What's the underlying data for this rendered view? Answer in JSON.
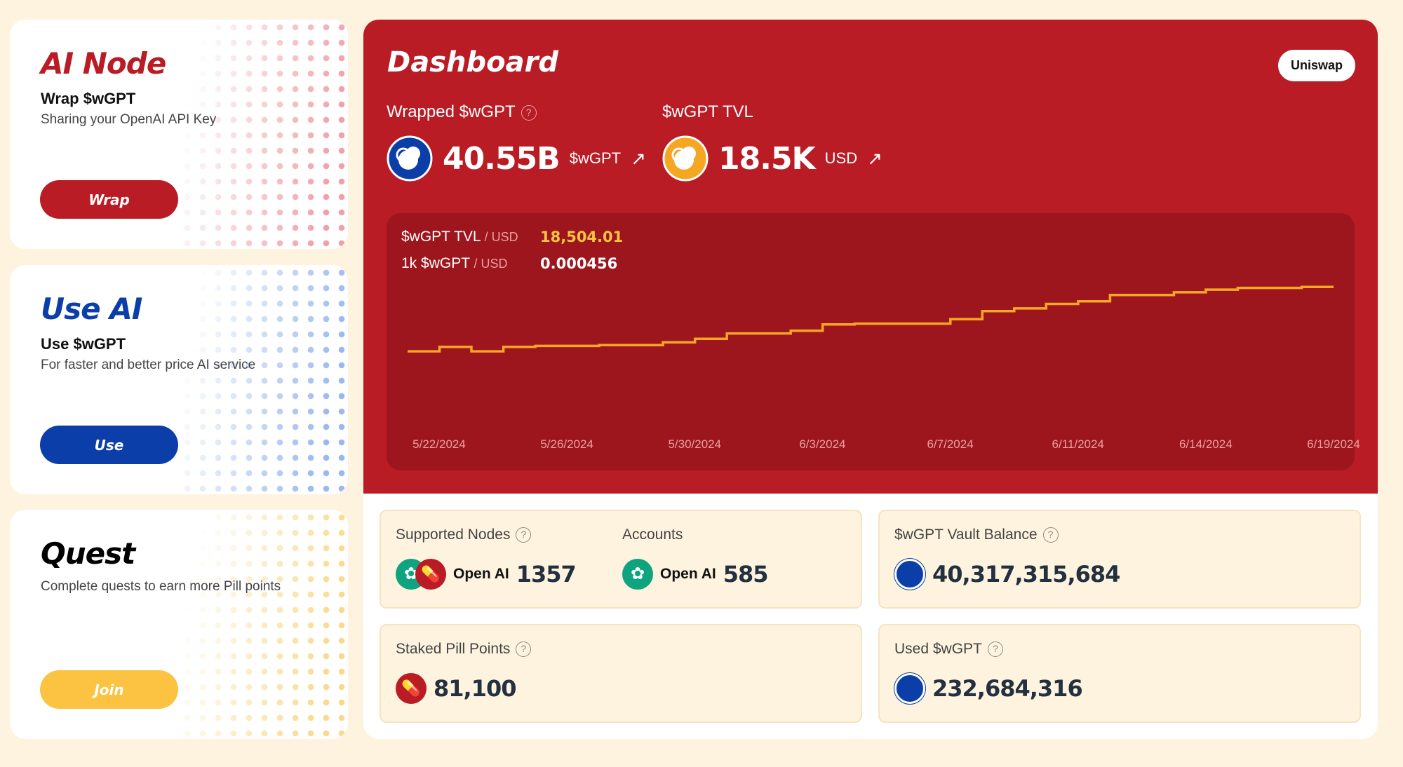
{
  "cards": [
    {
      "title": "AI Node",
      "subtitle": "Wrap $wGPT",
      "desc": "Sharing your OpenAI API Key",
      "button": "Wrap",
      "color": "#b91c24",
      "dot": "#f2a0a8"
    },
    {
      "title": "Use AI",
      "subtitle": "Use $wGPT",
      "desc": "For faster and better price AI service",
      "button": "Use",
      "color": "#0b3ea8",
      "dot": "#9ab8f0"
    },
    {
      "title": "Quest",
      "subtitle": "",
      "desc": "Complete quests to earn more Pill points",
      "button": "Join",
      "color": "#fcc342",
      "dot": "#fbd98a"
    }
  ],
  "dashboard": {
    "title": "Dashboard",
    "uniswap": "Uniswap",
    "wrapped": {
      "label": "Wrapped $wGPT",
      "value": "40.55B",
      "unit": "$wGPT"
    },
    "tvl": {
      "label": "$wGPT TVL",
      "value": "18.5K",
      "unit": "USD"
    },
    "chart_rows": [
      {
        "label": "$wGPT TVL",
        "unit": "/ USD",
        "value": "18,504.01"
      },
      {
        "label": "1k $wGPT",
        "unit": "/ USD",
        "value": "0.000456"
      }
    ]
  },
  "chart_data": {
    "type": "line",
    "line_color": "#f5a623",
    "grid": false,
    "ylim": [
      0,
      21000
    ],
    "x_ticks": [
      "5/22/2024",
      "5/26/2024",
      "5/30/2024",
      "6/3/2024",
      "6/7/2024",
      "6/11/2024",
      "6/14/2024",
      "6/19/2024"
    ],
    "x": [
      "5/21",
      "5/22",
      "5/23",
      "5/24",
      "5/25",
      "5/26",
      "5/27",
      "5/28",
      "5/29",
      "5/30",
      "5/31",
      "6/1",
      "6/2",
      "6/3",
      "6/4",
      "6/5",
      "6/6",
      "6/7",
      "6/8",
      "6/9",
      "6/10",
      "6/11",
      "6/12",
      "6/13",
      "6/14",
      "6/15",
      "6/16",
      "6/17",
      "6/18",
      "6/19"
    ],
    "values": [
      10126,
      10709,
      10126,
      10709,
      10825,
      10825,
      10942,
      10942,
      11291,
      11756,
      12455,
      12455,
      12804,
      13619,
      13735,
      13735,
      13735,
      14317,
      15365,
      15714,
      16296,
      16645,
      17460,
      17460,
      17809,
      18158,
      18391,
      18391,
      18504,
      18504.01
    ]
  },
  "stats": {
    "supported_nodes": {
      "label": "Supported Nodes",
      "provider": "Open AI",
      "value": "1357"
    },
    "accounts": {
      "label": "Accounts",
      "provider": "Open AI",
      "value": "585"
    },
    "vault": {
      "label": "$wGPT Vault Balance",
      "value": "40,317,315,684"
    },
    "staked": {
      "label": "Staked Pill Points",
      "value": "81,100"
    },
    "used": {
      "label": "Used $wGPT",
      "value": "232,684,316"
    }
  }
}
